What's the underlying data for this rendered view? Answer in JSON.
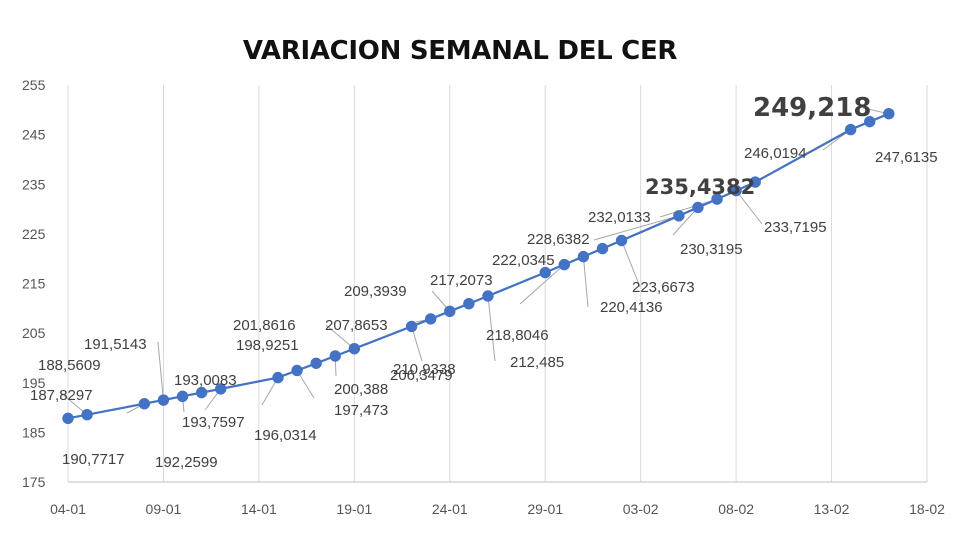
{
  "chart_data": {
    "type": "line",
    "title": "VARIACION SEMANAL DEL CER",
    "xlabel": "",
    "ylabel": "",
    "ylim": [
      175,
      255
    ],
    "y_ticks": [
      175,
      185,
      195,
      205,
      215,
      225,
      235,
      245,
      255
    ],
    "x_tick_labels": [
      "04-01",
      "09-01",
      "14-01",
      "19-01",
      "24-01",
      "29-01",
      "03-02",
      "08-02",
      "13-02",
      "18-02"
    ],
    "grid": "vertical",
    "line_color": "#4472C4",
    "series": [
      {
        "points": [
          {
            "day": 0,
            "value": 187.8297,
            "label": "187,8297"
          },
          {
            "day": 1,
            "value": 188.5609,
            "label": "188,5609"
          },
          {
            "day": 4,
            "value": 190.7717,
            "label": "190,7717"
          },
          {
            "day": 5,
            "value": 191.5143,
            "label": "191,5143"
          },
          {
            "day": 6,
            "value": 192.2599,
            "label": "192,2599"
          },
          {
            "day": 7,
            "value": 193.0083,
            "label": "193,0083"
          },
          {
            "day": 8,
            "value": 193.7597,
            "label": "193,7597"
          },
          {
            "day": 11,
            "value": 196.0314,
            "label": "196,0314"
          },
          {
            "day": 12,
            "value": 197.473,
            "label": "197,473"
          },
          {
            "day": 13,
            "value": 198.9251,
            "label": "198,9251"
          },
          {
            "day": 14,
            "value": 200.388,
            "label": "200,388"
          },
          {
            "day": 15,
            "value": 201.8616,
            "label": "201,8616"
          },
          {
            "day": 18,
            "value": 206.3479,
            "label": "206,3479"
          },
          {
            "day": 19,
            "value": 207.8653,
            "label": "207,8653"
          },
          {
            "day": 20,
            "value": 209.3939,
            "label": "209,3939"
          },
          {
            "day": 21,
            "value": 210.9338,
            "label": "210,9338"
          },
          {
            "day": 22,
            "value": 212.485,
            "label": "212,485"
          },
          {
            "day": 25,
            "value": 217.2073,
            "label": "217,2073"
          },
          {
            "day": 26,
            "value": 218.8046,
            "label": "218,8046"
          },
          {
            "day": 27,
            "value": 220.4136,
            "label": "220,4136"
          },
          {
            "day": 28,
            "value": 222.0345,
            "label": "222,0345"
          },
          {
            "day": 29,
            "value": 223.6673,
            "label": "223,6673"
          },
          {
            "day": 32,
            "value": 228.6382,
            "label": "228,6382"
          },
          {
            "day": 33,
            "value": 230.3195,
            "label": "230,3195"
          },
          {
            "day": 34,
            "value": 232.0133,
            "label": "232,0133"
          },
          {
            "day": 35,
            "value": 233.7195,
            "label": "233,7195"
          },
          {
            "day": 36,
            "value": 235.4382,
            "label": "235,4382"
          },
          {
            "day": 41,
            "value": 246.0194,
            "label": "246,0194"
          },
          {
            "day": 42,
            "value": 247.6135,
            "label": "247,6135"
          },
          {
            "day": 43,
            "value": 249.218,
            "label": "249,218"
          }
        ]
      }
    ]
  }
}
